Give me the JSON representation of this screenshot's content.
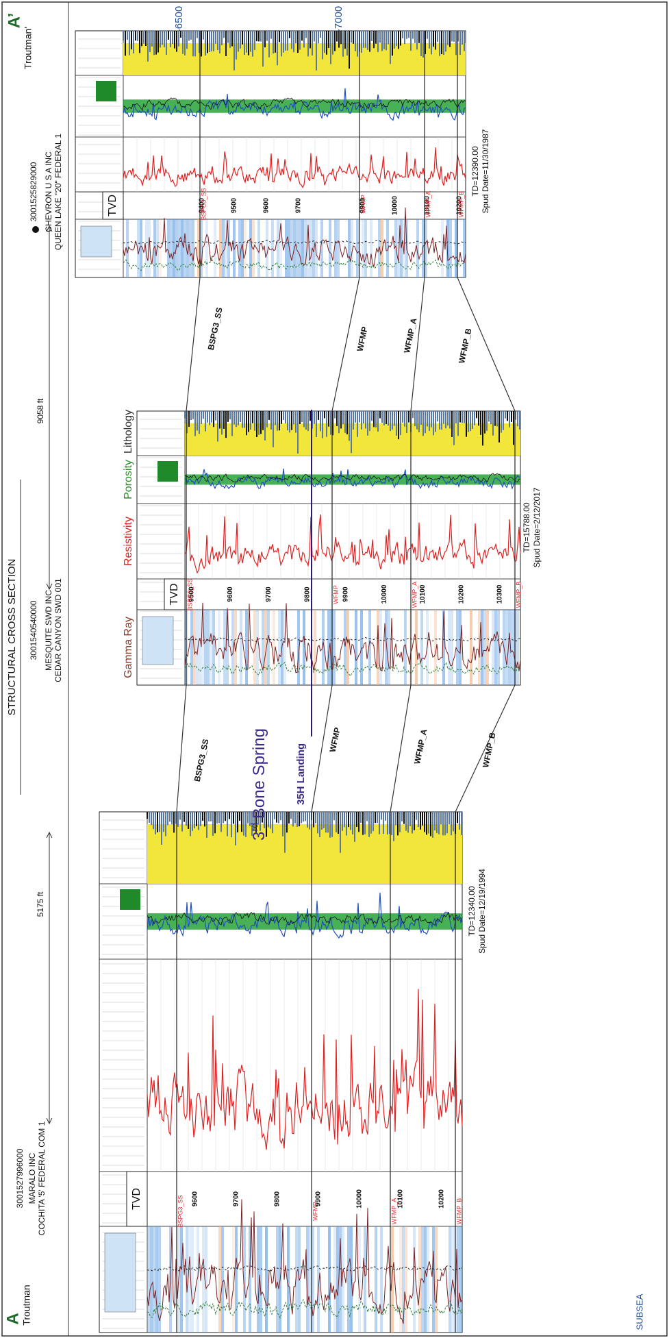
{
  "header": {
    "title": "STRUCTURAL CROSS SECTION",
    "start_label": "A",
    "end_label": "A’",
    "start_name": "Troutman",
    "end_name": "Troutman'",
    "datum": "SUBSEA"
  },
  "datum_left": [
    "-6500",
    "-7000"
  ],
  "datum_right": [
    "-6500",
    "-7000"
  ],
  "spacings": [
    "5175 ft",
    "9058 ft"
  ],
  "track_labels": {
    "gamma": "Gamma Ray",
    "resistivity": "Resistivity",
    "porosity": "Porosity",
    "lithology": "Lithology"
  },
  "tvd_label": "TVD",
  "wells": [
    {
      "api": "3001527996000",
      "operator": "MARALO INC",
      "lease": "COCHITA '5' FEDERAL COM 1",
      "td": "TD=12340.00",
      "spud": "Spud Date=12/19/1994",
      "depths": [
        9600,
        9700,
        9800,
        9900,
        10000,
        10100,
        10200
      ],
      "tops": [
        "BSPG3_SS",
        "WFMP",
        "WFMP_A",
        "WFMP_B"
      ]
    },
    {
      "api": "3001540540000",
      "operator": "MESQUITE SWD INC",
      "lease": "CEDAR CANYON SWD 001",
      "td": "TD=15788.00",
      "spud": "Spud Date=2/12/2017",
      "depths": [
        9500,
        9600,
        9700,
        9800,
        9900,
        10000,
        10100,
        10200,
        10300
      ],
      "tops": [
        "BSPG3_SS",
        "WFMP",
        "WFMP_A",
        "WFMP_B"
      ]
    },
    {
      "api": "3001525829000",
      "operator": "CHEVRON U S A INC",
      "lease": "QUEEN LAKE \"20\" FEDERAL 1",
      "td": "TD=12390.00",
      "spud": "Spud Date=11/30/1987",
      "depths": [
        9400,
        9500,
        9600,
        9700,
        9900,
        10000,
        10100,
        10200
      ],
      "tops": [
        "BSPG3_SS",
        "WFMP",
        "WFMP_A",
        "WFMP_B"
      ]
    }
  ],
  "correlations_1_2": [
    "BSPG3_SS",
    "WFMP",
    "WFMP_A",
    "WFMP_B"
  ],
  "correlations_2_3": [
    "BSPG3_SS",
    "WFMP",
    "WFMP_A",
    "WFMP_B"
  ],
  "annotations": {
    "bone_spring_num": "3",
    "bone_spring_sup": "rd",
    "bone_spring": "Bone Spring",
    "landing": "35H Landing"
  }
}
